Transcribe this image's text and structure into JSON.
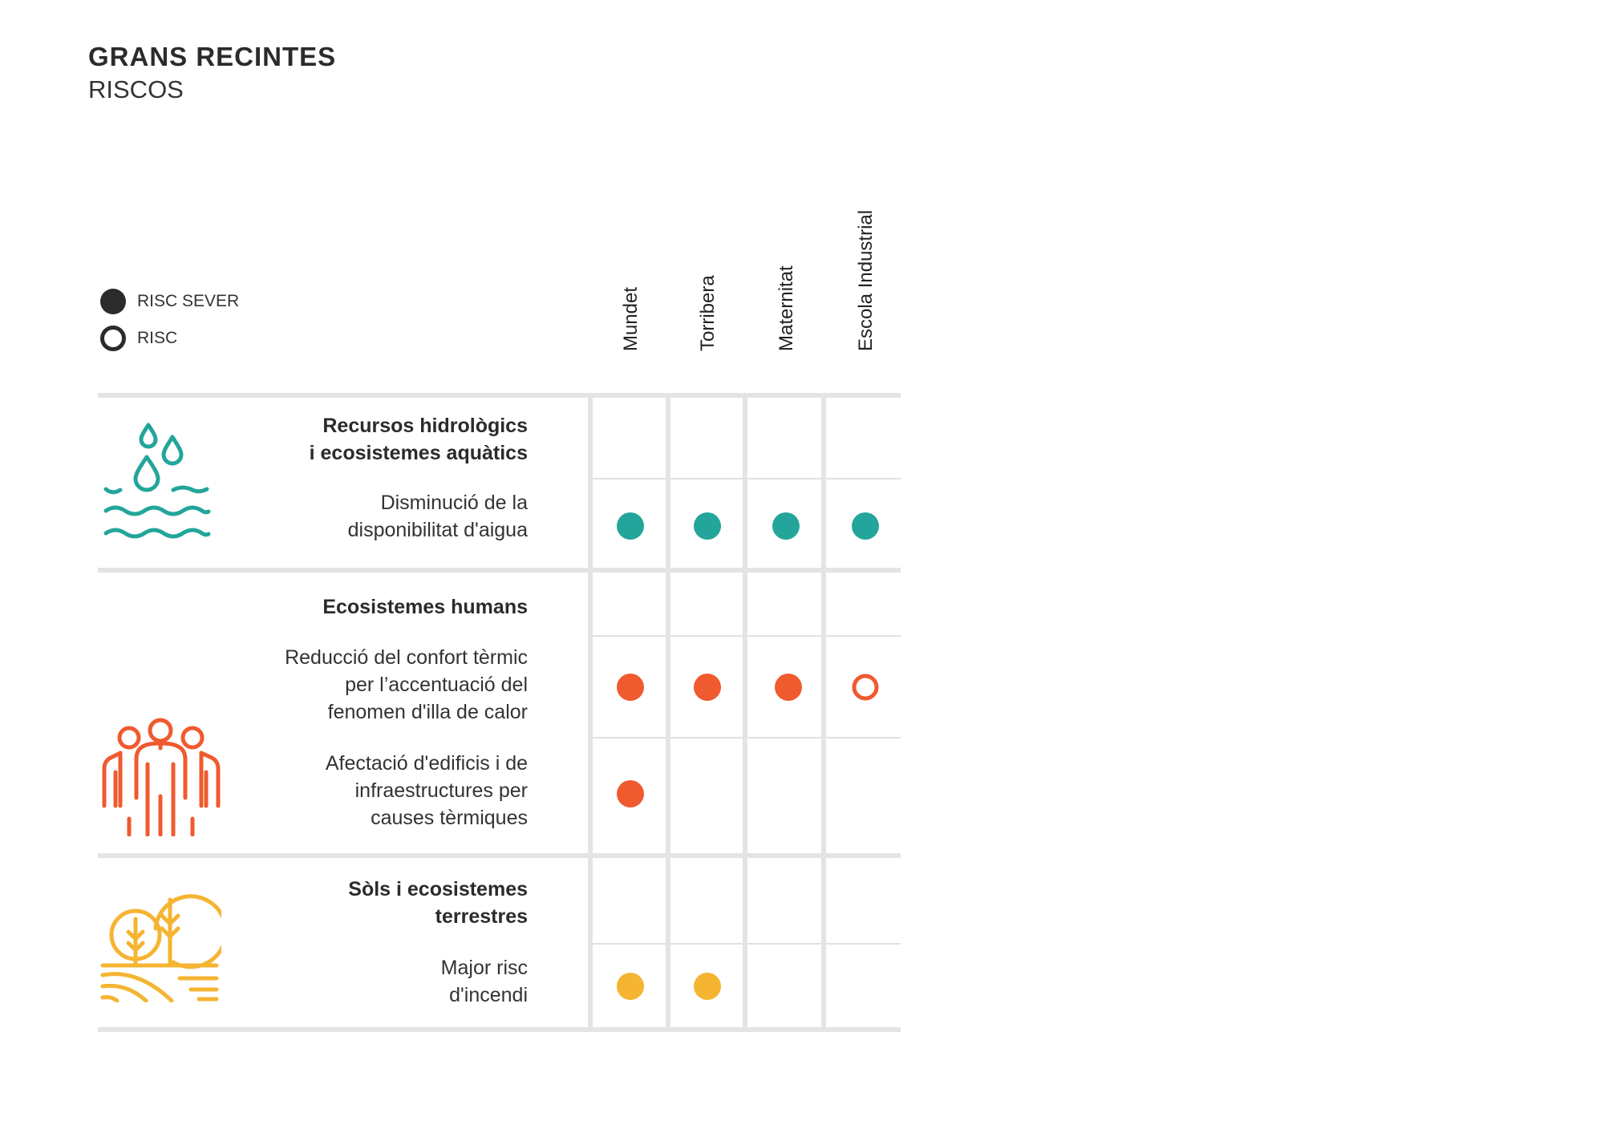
{
  "header": {
    "title": "GRANS RECINTES",
    "subtitle": "RISCOS"
  },
  "legend": [
    {
      "label": "RISC SEVER",
      "type": "filled"
    },
    {
      "label": "RISC",
      "type": "outline"
    }
  ],
  "columns": [
    "Mundet",
    "Torribera",
    "Maternitat",
    "Escola Industrial"
  ],
  "colors": {
    "water": "#23a59b",
    "human": "#ef5a2e",
    "soil": "#f5b431",
    "legend": "#2b2b2b",
    "grid": "#e4e4e4"
  },
  "sections": [
    {
      "title_lines": [
        "Recursos hidrològics",
        "i ecosistemes aquàtics"
      ],
      "icon": "water-drops-waves-icon",
      "risks": [
        {
          "label_lines": [
            "Disminució de la",
            "disponibilitat d'aigua"
          ],
          "cells": [
            "severe",
            "severe",
            "severe",
            "severe"
          ]
        }
      ]
    },
    {
      "title_lines": [
        "Ecosistemes humans"
      ],
      "icon": "people-group-icon",
      "risks": [
        {
          "label_lines": [
            "Reducció del confort tèrmic",
            "per l’accentuació del",
            "fenomen d'illa de calor"
          ],
          "cells": [
            "severe",
            "severe",
            "severe",
            "risk"
          ]
        },
        {
          "label_lines": [
            "Afectació d'edificis i de",
            "infraestructures per",
            "causes tèrmiques"
          ],
          "cells": [
            "severe",
            "",
            "",
            ""
          ]
        }
      ]
    },
    {
      "title_lines": [
        "Sòls i ecosistemes",
        "terrestres"
      ],
      "icon": "trees-fields-icon",
      "risks": [
        {
          "label_lines": [
            "Major risc",
            "d'incendi"
          ],
          "cells": [
            "severe",
            "severe",
            "",
            ""
          ]
        }
      ]
    }
  ]
}
